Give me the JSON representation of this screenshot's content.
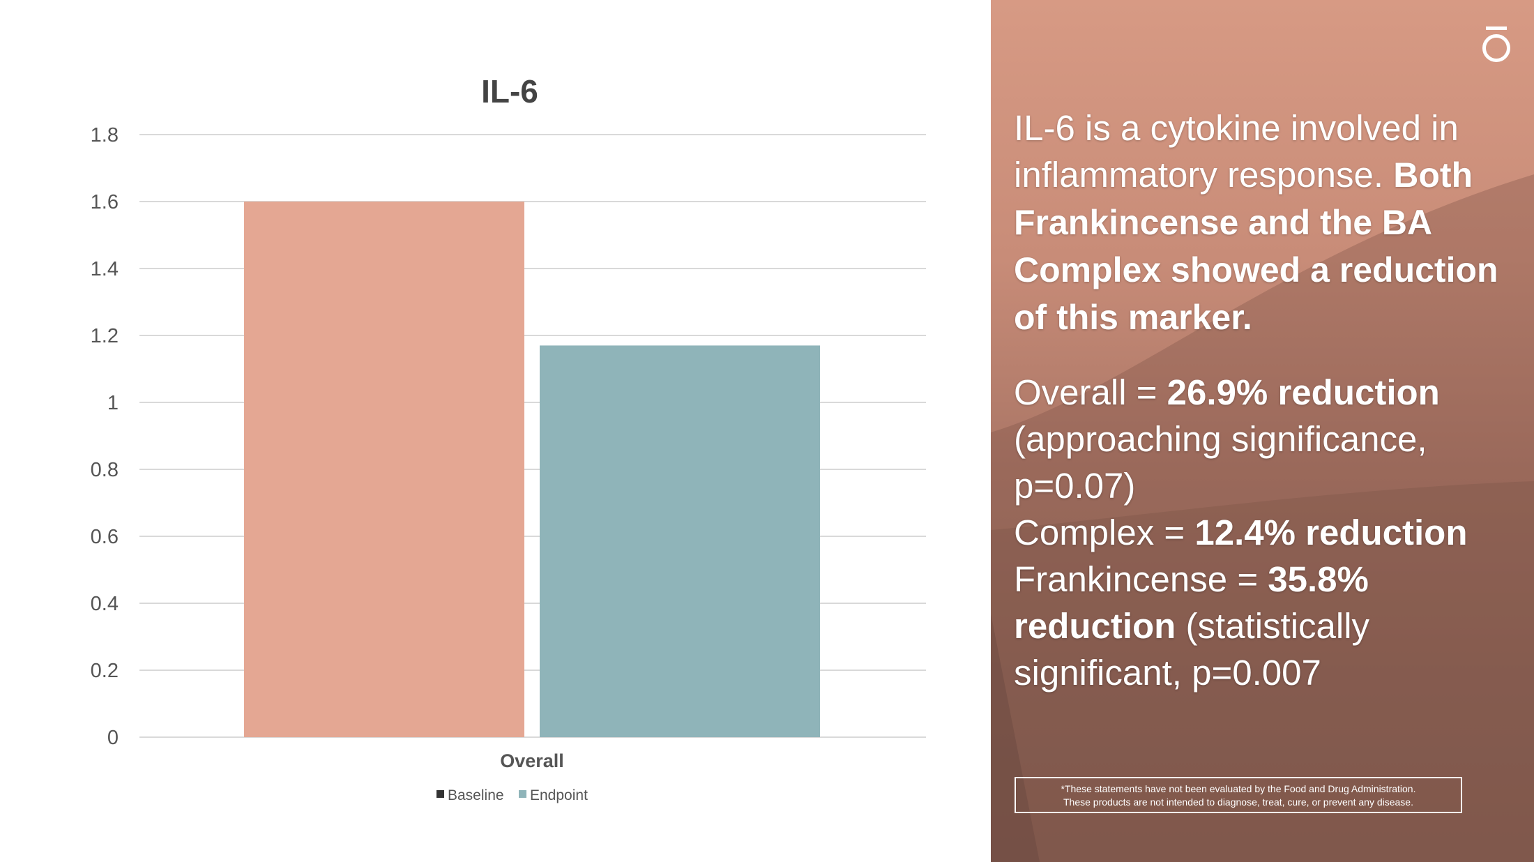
{
  "chart_data": {
    "type": "bar",
    "title": "IL-6",
    "categories": [
      "Overall"
    ],
    "series": [
      {
        "name": "Baseline",
        "values": [
          1.6
        ],
        "color": "#e4a793"
      },
      {
        "name": "Endpoint",
        "values": [
          1.17
        ],
        "color": "#8fb4b9"
      }
    ],
    "ylim": [
      0,
      1.8
    ],
    "yticks": [
      "0",
      "0.2",
      "0.4",
      "0.6",
      "0.8",
      "1",
      "1.2",
      "1.4",
      "1.6",
      "1.8"
    ],
    "grid": true,
    "legend": "bottom",
    "legend_marker_colors": [
      "#333333",
      "#8fb4b9"
    ]
  },
  "side": {
    "intro": "IL-6 is a cytokine involved in inflammatory response.",
    "intro_bold": "Both Frankincense and the BA Complex showed a reduction of this marker.",
    "overall_label": "Overall = ",
    "overall_value": "26.9% reduction",
    "overall_note": "(approaching significance, p=0.07)",
    "complex_label": "Complex = ",
    "complex_value": "12.4% reduction",
    "frank_label": "Frankincense = ",
    "frank_value": "35.8% reduction",
    "frank_note": "(statistically significant, p=0.007",
    "disclaimer_line1": "*These statements have not been evaluated by the Food and Drug Administration.",
    "disclaimer_line2": "These products are not intended to diagnose, treat, cure, or prevent any disease.",
    "logo_icon": "brand-logo-icon"
  }
}
